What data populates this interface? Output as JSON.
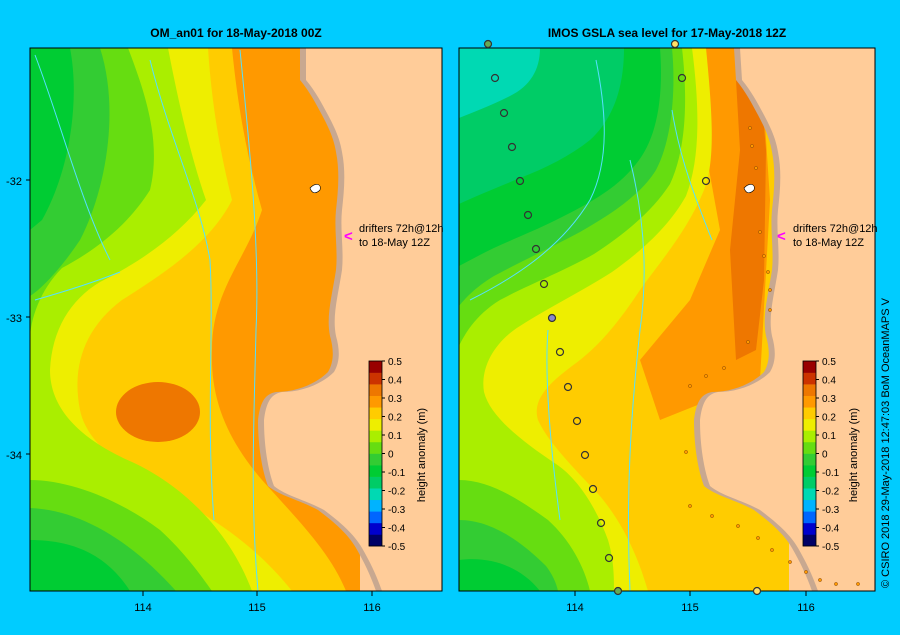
{
  "colors": {
    "background": "#00ccff",
    "land": "#ffcc99",
    "coast": "#c8a890",
    "contour_scale": [
      "#000066",
      "#0000cc",
      "#0066ff",
      "#00b3ff",
      "#00d9b3",
      "#00cc66",
      "#00cc33",
      "#33cc33",
      "#66dd11",
      "#aaee00",
      "#eeee00",
      "#ffcc00",
      "#ff9900",
      "#ee7700",
      "#cc3300",
      "#990000"
    ],
    "drifter_marker": "#ff00ff"
  },
  "left_map": {
    "title": "OM_an01  for 18-May-2018 00Z",
    "drifter_label_1": "drifters 72h@12h",
    "drifter_label_2": "to 18-May 12Z",
    "colorbar": {
      "label": "height anomaly (m)",
      "ticks": [
        "0.5",
        "0.4",
        "0.3",
        "0.2",
        "0.1",
        "0",
        "-0.1",
        "-0.2",
        "-0.3",
        "-0.4",
        "-0.5"
      ]
    }
  },
  "right_map": {
    "title": "IMOS GSLA sea level  for 17-May-2018 12Z",
    "drifter_label_1": "drifters 72h@12h",
    "drifter_label_2": "to 18-May 12Z",
    "colorbar": {
      "label": "height anomaly (m)",
      "ticks": [
        "0.5",
        "0.4",
        "0.3",
        "0.2",
        "0.1",
        "0",
        "-0.1",
        "-0.2",
        "-0.3",
        "-0.4",
        "-0.5"
      ]
    }
  },
  "axes": {
    "lat_ticks": [
      "-32",
      "-33",
      "-34"
    ],
    "lon_ticks": [
      "114",
      "115",
      "116"
    ]
  },
  "credit": "© CSIRO 2018   29-May-2018 12:47:03 BoM OceanMAPS V"
}
